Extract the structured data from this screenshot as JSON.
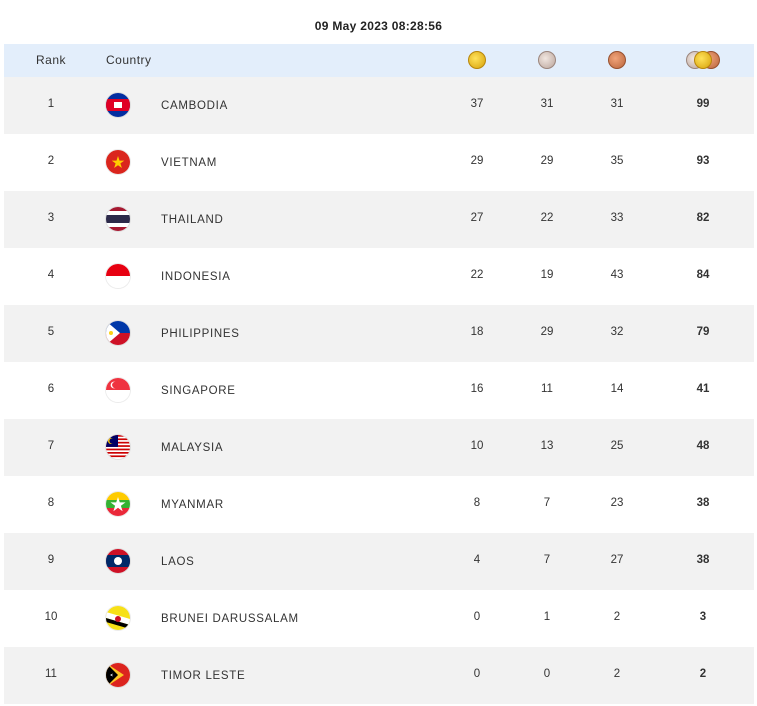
{
  "timestamp": "09 May 2023  08:28:56",
  "header": {
    "rank": "Rank",
    "country": "Country"
  },
  "icons": {
    "gold": "gold-medal-icon",
    "silver": "silver-medal-icon",
    "bronze": "bronze-medal-icon",
    "total": "all-medals-icon"
  },
  "rows": [
    {
      "rank": "1",
      "country": "CAMBODIA",
      "gold": "37",
      "silver": "31",
      "bronze": "31",
      "total": "99",
      "flag": "cambodia-flag-icon"
    },
    {
      "rank": "2",
      "country": "VIETNAM",
      "gold": "29",
      "silver": "29",
      "bronze": "35",
      "total": "93",
      "flag": "vietnam-flag-icon"
    },
    {
      "rank": "3",
      "country": "THAILAND",
      "gold": "27",
      "silver": "22",
      "bronze": "33",
      "total": "82",
      "flag": "thailand-flag-icon"
    },
    {
      "rank": "4",
      "country": "INDONESIA",
      "gold": "22",
      "silver": "19",
      "bronze": "43",
      "total": "84",
      "flag": "indonesia-flag-icon"
    },
    {
      "rank": "5",
      "country": "PHILIPPINES",
      "gold": "18",
      "silver": "29",
      "bronze": "32",
      "total": "79",
      "flag": "philippines-flag-icon"
    },
    {
      "rank": "6",
      "country": "SINGAPORE",
      "gold": "16",
      "silver": "11",
      "bronze": "14",
      "total": "41",
      "flag": "singapore-flag-icon"
    },
    {
      "rank": "7",
      "country": "MALAYSIA",
      "gold": "10",
      "silver": "13",
      "bronze": "25",
      "total": "48",
      "flag": "malaysia-flag-icon"
    },
    {
      "rank": "8",
      "country": "MYANMAR",
      "gold": "8",
      "silver": "7",
      "bronze": "23",
      "total": "38",
      "flag": "myanmar-flag-icon"
    },
    {
      "rank": "9",
      "country": "LAOS",
      "gold": "4",
      "silver": "7",
      "bronze": "27",
      "total": "38",
      "flag": "laos-flag-icon"
    },
    {
      "rank": "10",
      "country": "BRUNEI DARUSSALAM",
      "gold": "0",
      "silver": "1",
      "bronze": "2",
      "total": "3",
      "flag": "brunei-flag-icon"
    },
    {
      "rank": "11",
      "country": "TIMOR LESTE",
      "gold": "0",
      "silver": "0",
      "bronze": "2",
      "total": "2",
      "flag": "timor-leste-flag-icon"
    }
  ]
}
